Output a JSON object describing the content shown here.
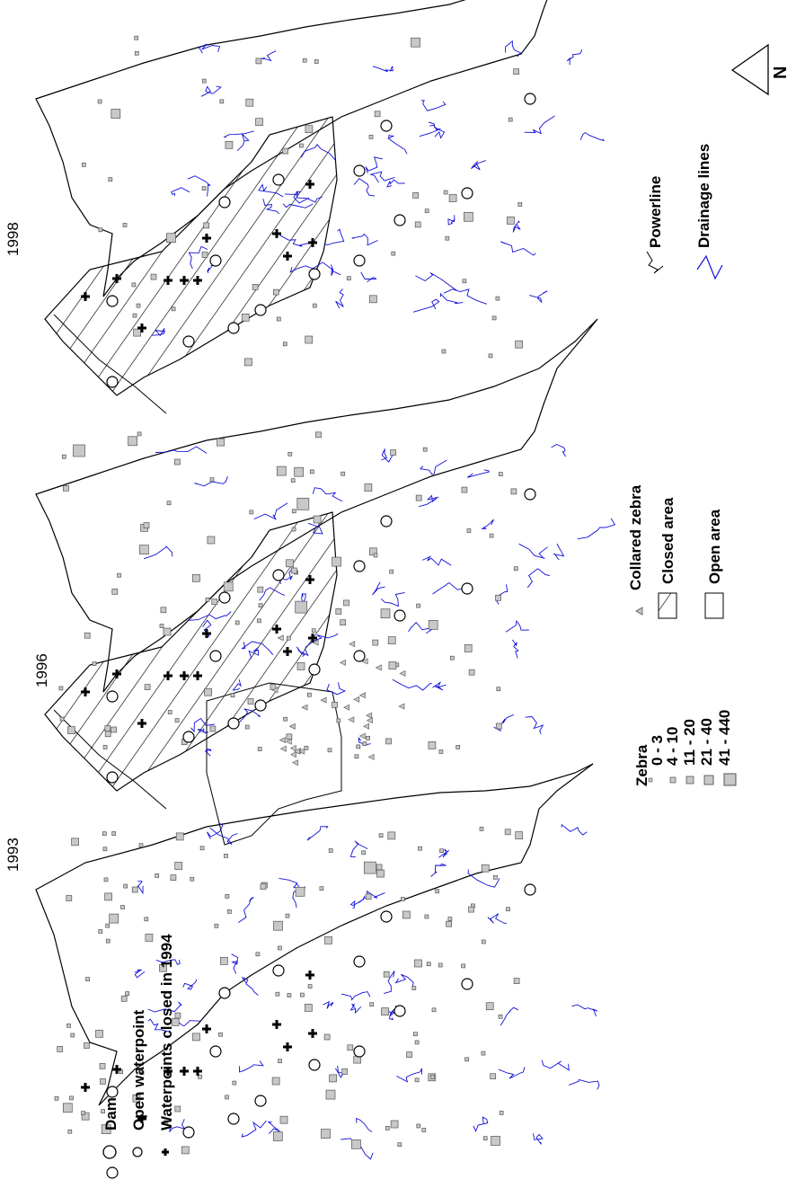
{
  "figure": {
    "panels": [
      {
        "year": "1993",
        "closed": false
      },
      {
        "year": "1996",
        "closed": true
      },
      {
        "year": "1998",
        "closed": true
      }
    ],
    "legend": {
      "dam": "Dam",
      "open_waterpoint": "Open waterpoint",
      "closed_waterpoints": "Waterpoints closed in 1994",
      "zebra_title": "Zebra",
      "zebra_classes": [
        "0 - 3",
        "4 - 10",
        "11 - 20",
        "21 - 40",
        "41 - 440"
      ],
      "collared_zebra": "Collared zebra",
      "closed_area": "Closed area",
      "open_area": "Open area",
      "powerline": "Powerline",
      "drainage": "Drainage lines",
      "north": "N"
    },
    "colors": {
      "drainage": "#1010d8",
      "zebra_fill": "#c8c8c8",
      "outline": "#000000"
    }
  }
}
